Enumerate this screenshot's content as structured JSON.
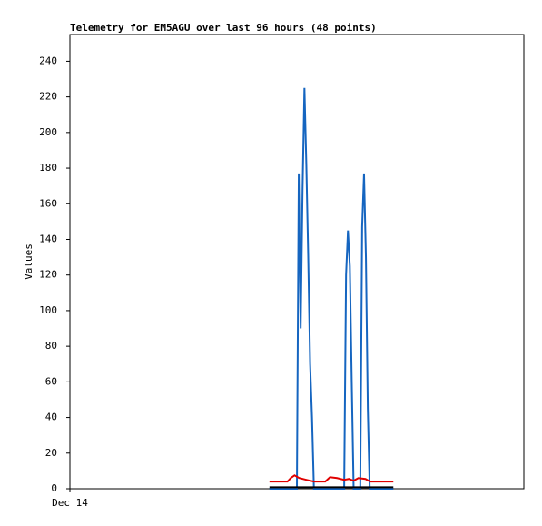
{
  "chart_data": {
    "type": "line",
    "title": "Telemetry for EM5AGU over last 96 hours (48 points)",
    "y_label": "Values",
    "xlim": [
      0,
      96
    ],
    "xticks": [
      {
        "value": 0,
        "label": "Dec 14"
      }
    ],
    "ylim": [
      0,
      255
    ],
    "yticks": [
      0,
      20,
      40,
      60,
      80,
      100,
      120,
      140,
      160,
      180,
      200,
      220,
      240
    ],
    "grid": false,
    "series": [
      {
        "color": "#1565c0",
        "x": [
          42.2,
          48.0,
          48.4,
          48.8,
          49.2,
          49.6,
          50.0,
          50.4,
          50.8,
          51.2,
          51.6,
          58.0,
          58.4,
          58.8,
          59.2,
          59.6,
          60.0,
          61.4,
          61.8,
          62.2,
          62.6,
          63.0,
          63.4,
          68.4
        ],
        "values": [
          0,
          0,
          177,
          90,
          168,
          225,
          182,
          130,
          70,
          40,
          0,
          0,
          120,
          145,
          125,
          60,
          0,
          0,
          147,
          177,
          130,
          45,
          0,
          0
        ]
      },
      {
        "color": "#e00000",
        "x": [
          42.2,
          46.0,
          46.7,
          47.5,
          48.5,
          50.0,
          51.6,
          54.0,
          55.0,
          56.5,
          58.0,
          59.0,
          60.0,
          61.0,
          62.5,
          63.5,
          68.4
        ],
        "values": [
          4,
          4,
          6,
          7.5,
          6,
          5,
          4,
          4,
          6.5,
          6,
          5,
          5.5,
          4.5,
          6,
          5.5,
          4,
          4
        ]
      },
      {
        "color": "#000000",
        "x": [
          42.2,
          68.4
        ],
        "values": [
          0.8,
          0.8
        ]
      }
    ]
  }
}
